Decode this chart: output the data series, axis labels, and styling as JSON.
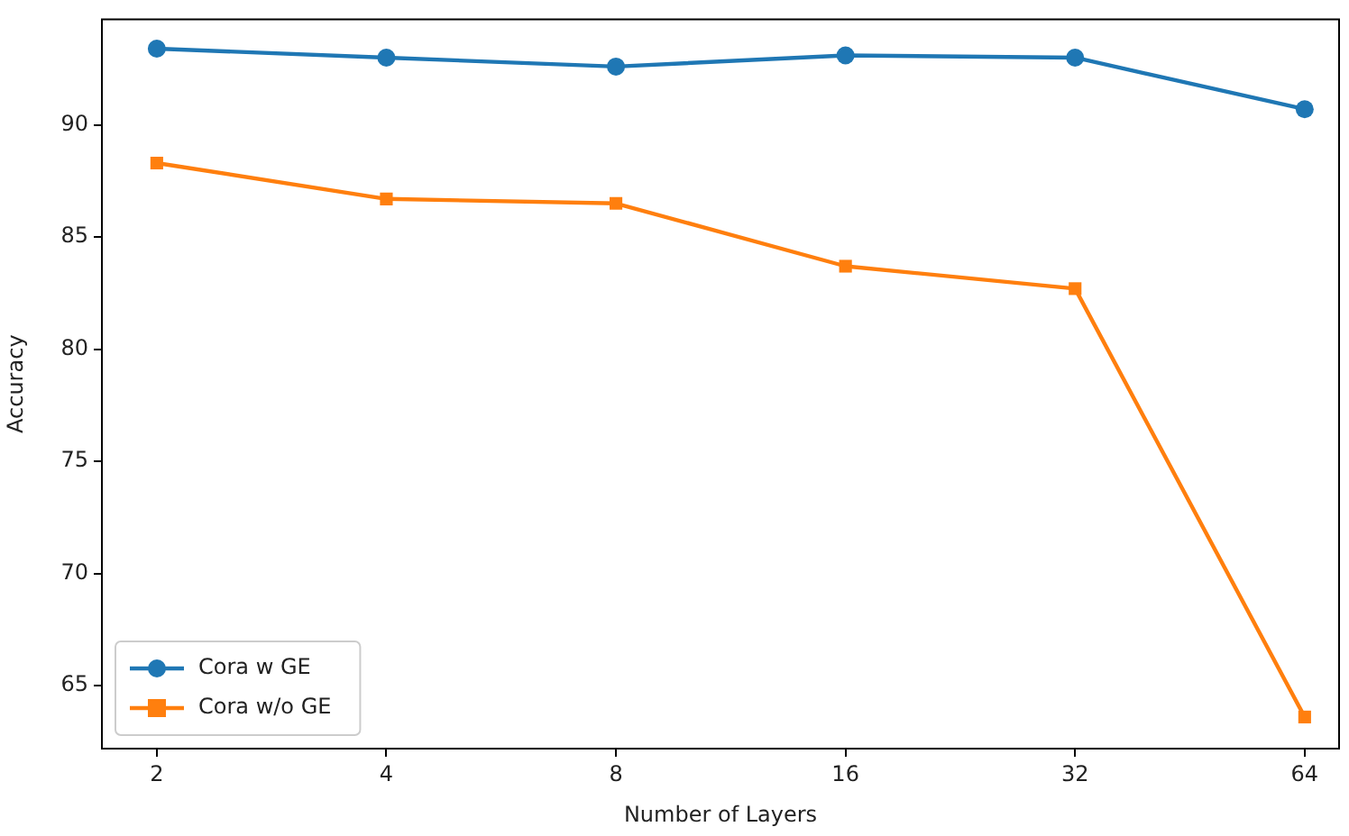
{
  "chart_data": {
    "type": "line",
    "xlabel": "Number of Layers",
    "ylabel": "Accuracy",
    "x": [
      2,
      4,
      8,
      16,
      32,
      64
    ],
    "series": [
      {
        "name": "Cora w GE",
        "color": "#1f77b4",
        "marker": "circle",
        "values": [
          93.4,
          93.0,
          92.6,
          93.1,
          93.0,
          90.7
        ]
      },
      {
        "name": "Cora w/o GE",
        "color": "#ff7f0e",
        "marker": "square",
        "values": [
          88.3,
          86.7,
          86.5,
          83.7,
          82.7,
          63.6
        ]
      }
    ],
    "log": "x",
    "xlim": [
      1.69,
      71.2
    ],
    "xticks": [
      2,
      4,
      8,
      16,
      32,
      64
    ],
    "ylim": [
      62.15,
      94.75
    ],
    "yticks": [
      65,
      70,
      75,
      80,
      85,
      90
    ],
    "grid": false,
    "legend": "bottom left"
  }
}
